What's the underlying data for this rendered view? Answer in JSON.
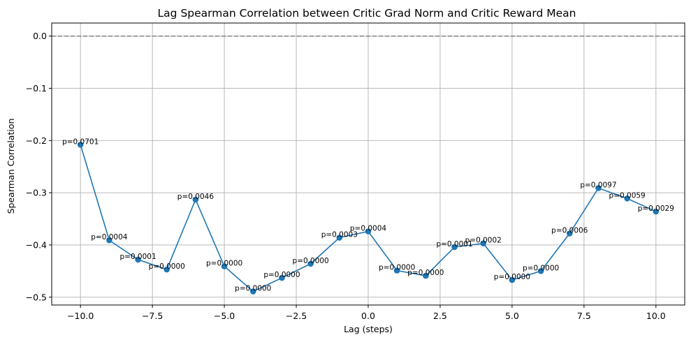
{
  "chart_data": {
    "type": "line",
    "title": "Lag Spearman Correlation between Critic Grad Norm and Critic Reward Mean",
    "xlabel": "Lag (steps)",
    "ylabel": "Spearman Correlation",
    "xlim": [
      -11,
      11
    ],
    "ylim": [
      -0.515,
      0.025
    ],
    "grid": true,
    "x_ticks": [
      -10.0,
      -7.5,
      -5.0,
      -2.5,
      0.0,
      2.5,
      5.0,
      7.5,
      10.0
    ],
    "x_tick_labels": [
      "−10.0",
      "−7.5",
      "−5.0",
      "−2.5",
      "0.0",
      "2.5",
      "5.0",
      "7.5",
      "10.0"
    ],
    "y_ticks": [
      0.0,
      -0.1,
      -0.2,
      -0.3,
      -0.4,
      -0.5
    ],
    "y_tick_labels": [
      "0.0",
      "−0.1",
      "−0.2",
      "−0.3",
      "−0.4",
      "−0.5"
    ],
    "reference_line": {
      "y": 0.0,
      "style": "dashed",
      "color": "#808080"
    },
    "series_color": "#1f77b4",
    "x": [
      -10,
      -9,
      -8,
      -7,
      -6,
      -5,
      -4,
      -3,
      -2,
      -1,
      0,
      1,
      2,
      3,
      4,
      5,
      6,
      7,
      8,
      9,
      10
    ],
    "y": [
      -0.208,
      -0.391,
      -0.428,
      -0.447,
      -0.313,
      -0.441,
      -0.489,
      -0.463,
      -0.436,
      -0.386,
      -0.374,
      -0.449,
      -0.459,
      -0.404,
      -0.397,
      -0.467,
      -0.45,
      -0.378,
      -0.291,
      -0.311,
      -0.336
    ],
    "annotations": [
      "p=0.0701",
      "p=0.0004",
      "p=0.0001",
      "p=0.0000",
      "p=0.0046",
      "p=0.0000",
      "p=0.0000",
      "p=0.0000",
      "p=0.0000",
      "p=0.0003",
      "p=0.0004",
      "p=0.0000",
      "p=0.0000",
      "p=0.0001",
      "p=0.0002",
      "p=0.0000",
      "p=0.0000",
      "p=0.0006",
      "p=0.0097",
      "p=0.0059",
      "p=0.0029"
    ]
  }
}
